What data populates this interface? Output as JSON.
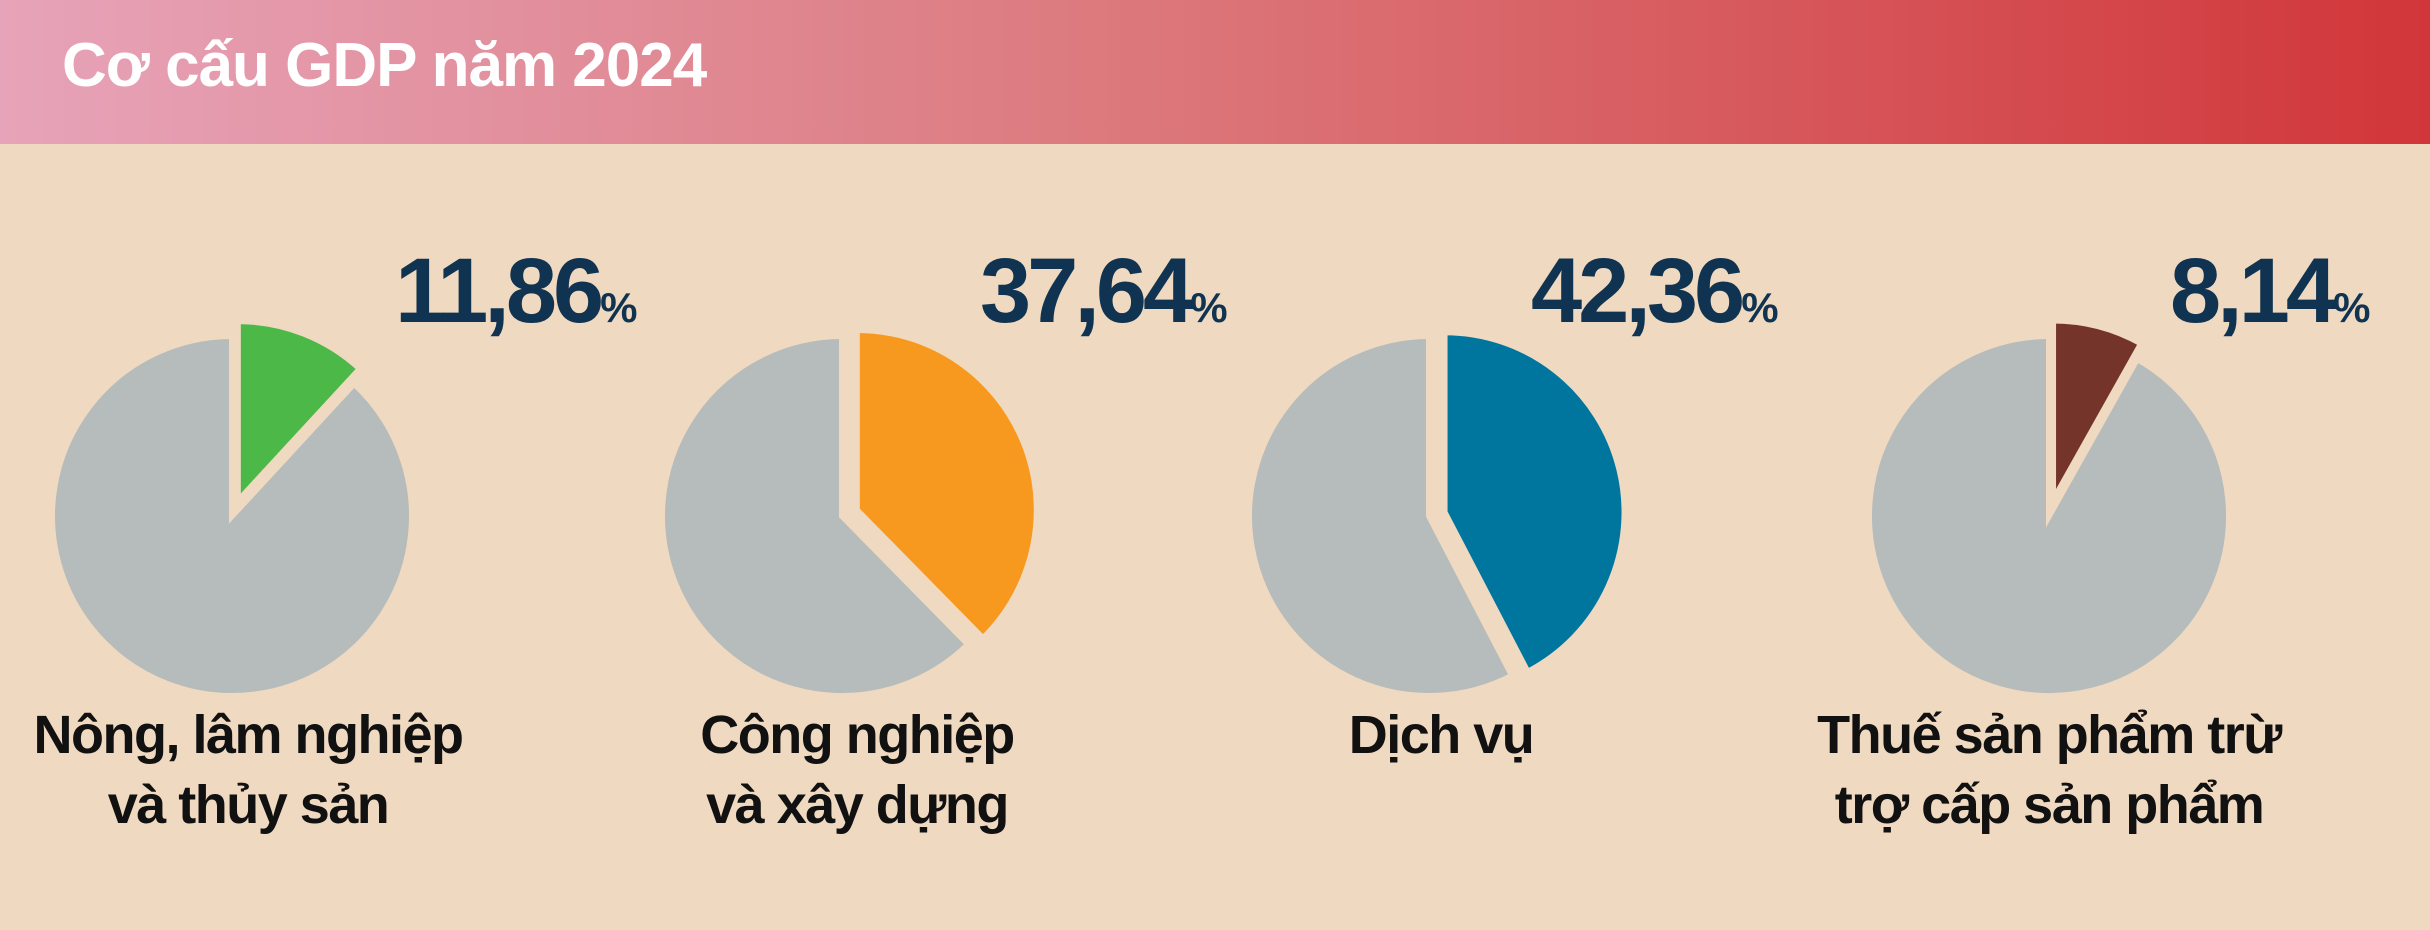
{
  "title": "Cơ cấu GDP năm 2024",
  "chart_data": [
    {
      "type": "pie",
      "categories": [
        "Nông, lâm nghiệp\nvà thủy sản"
      ],
      "values": [
        11.86
      ],
      "value_labels": [
        "11,86"
      ],
      "unit": "%",
      "colors": [
        "#4cb848"
      ]
    },
    {
      "type": "pie",
      "categories": [
        "Công nghiệp\nvà xây dựng"
      ],
      "values": [
        37.64
      ],
      "value_labels": [
        "37,64"
      ],
      "unit": "%",
      "colors": [
        "#f7991f"
      ]
    },
    {
      "type": "pie",
      "categories": [
        "Dịch vụ"
      ],
      "values": [
        42.36
      ],
      "value_labels": [
        "42,36"
      ],
      "unit": "%",
      "colors": [
        "#00769e"
      ]
    },
    {
      "type": "pie",
      "categories": [
        "Thuế sản phẩm trừ\ntrợ cấp sản phẩm"
      ],
      "values": [
        8.14
      ],
      "value_labels": [
        "8,14"
      ],
      "unit": "%",
      "colors": [
        "#74342a"
      ]
    }
  ]
}
